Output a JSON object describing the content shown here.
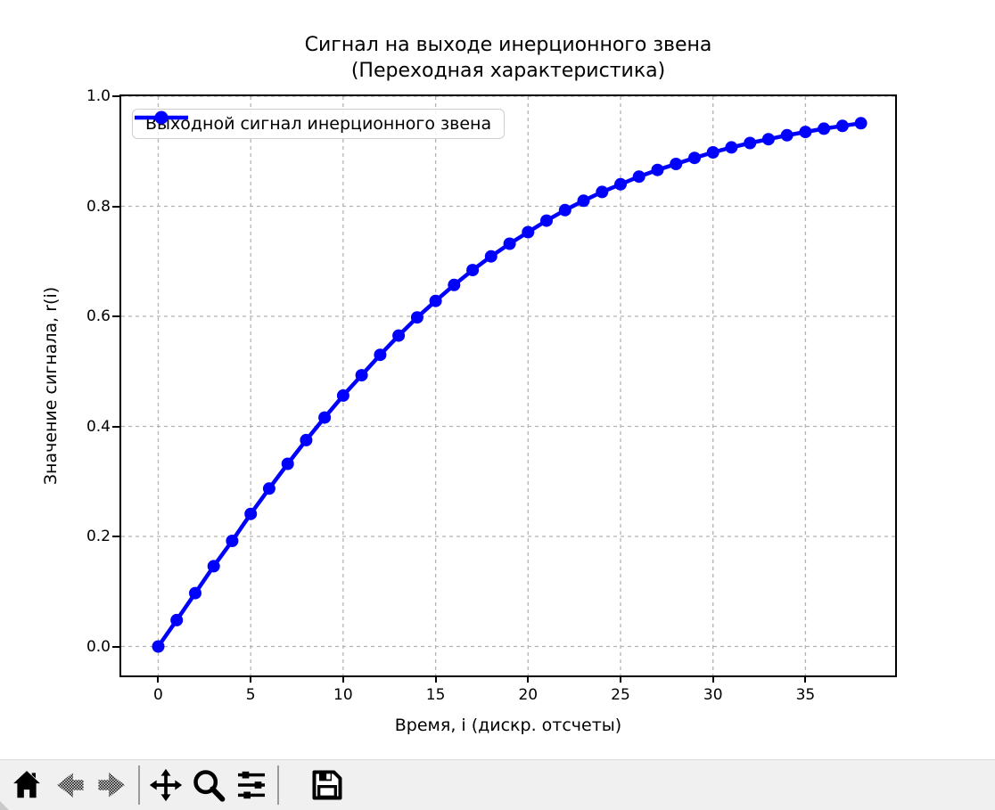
{
  "window": {
    "figure_background": "#ffffff",
    "toolbar_background": "#f0f0f0"
  },
  "chart_data": {
    "type": "line",
    "title_line1": "Сигнал на выходе инерционного звена",
    "title_line2": "(Переходная характеристика)",
    "xlabel": "Время, i (дискр. отсчеты)",
    "ylabel": "Значение сигнала, r(i)",
    "legend_entries": [
      "Выходной сигнал инерционного звена"
    ],
    "legend_position": "upper left",
    "line_color": "#0000ff",
    "marker": "o",
    "grid": true,
    "grid_color": "#b3b3b3",
    "axis_color": "#000000",
    "xlim": [
      -2.0,
      39.85
    ],
    "ylim": [
      -0.0526,
      1.0
    ],
    "xticks": [
      0,
      5,
      10,
      15,
      20,
      25,
      30,
      35
    ],
    "yticks": [
      0.0,
      0.2,
      0.4,
      0.6,
      0.8,
      1.0
    ],
    "x": [
      0,
      1,
      2,
      3,
      4,
      5,
      6,
      7,
      8,
      9,
      10,
      11,
      12,
      13,
      14,
      15,
      16,
      17,
      18,
      19,
      20,
      21,
      22,
      23,
      24,
      25,
      26,
      27,
      28,
      29,
      30,
      31,
      32,
      33,
      34,
      35,
      36,
      37,
      38
    ],
    "y": [
      0.0,
      0.048,
      0.097,
      0.146,
      0.192,
      0.241,
      0.287,
      0.332,
      0.375,
      0.416,
      0.456,
      0.493,
      0.53,
      0.565,
      0.598,
      0.628,
      0.657,
      0.684,
      0.709,
      0.732,
      0.753,
      0.774,
      0.793,
      0.81,
      0.826,
      0.84,
      0.854,
      0.866,
      0.877,
      0.888,
      0.898,
      0.907,
      0.915,
      0.922,
      0.929,
      0.935,
      0.941,
      0.946,
      0.951
    ]
  },
  "toolbar": {
    "icons": [
      "home",
      "back",
      "forward",
      "pan",
      "zoom",
      "configure-subplots",
      "save"
    ],
    "disabled_icons": [
      "back",
      "forward"
    ]
  }
}
